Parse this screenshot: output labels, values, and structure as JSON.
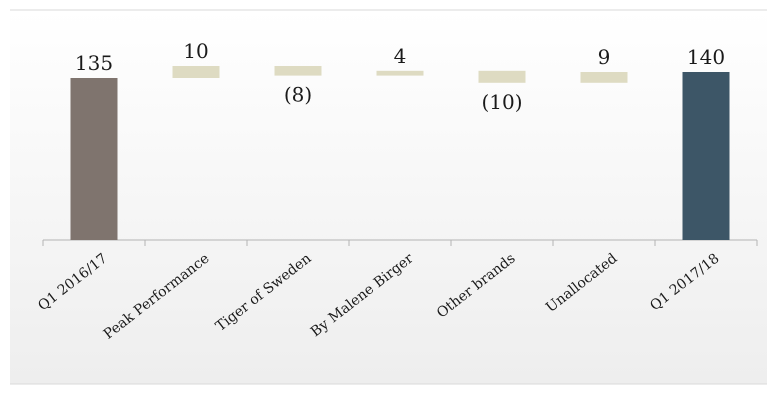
{
  "chart_data": {
    "type": "bar",
    "subtype": "waterfall",
    "categories": [
      "Q1 2016/17",
      "Peak Performance",
      "Tiger of Sweden",
      "By Malene Birger",
      "Other brands",
      "Unallocated",
      "Q1 2017/18"
    ],
    "values": [
      135,
      10,
      -8,
      4,
      -10,
      9,
      140
    ],
    "data_labels": [
      "135",
      "10",
      "(8)",
      "4",
      "(10)",
      "9",
      "140"
    ],
    "bar_kinds": [
      "total",
      "delta",
      "delta",
      "delta",
      "delta",
      "delta",
      "total"
    ],
    "ylim": [
      0,
      153
    ],
    "grid": false,
    "legend": "none",
    "colors": {
      "start_total": "#7f746e",
      "delta": "#dedbc2",
      "end_total": "#3d5667",
      "plot_background_top": "#ffffff",
      "plot_background_bottom": "#eeeeee",
      "axis": "#b3b3b3",
      "frame": "#d9d9d9"
    }
  }
}
